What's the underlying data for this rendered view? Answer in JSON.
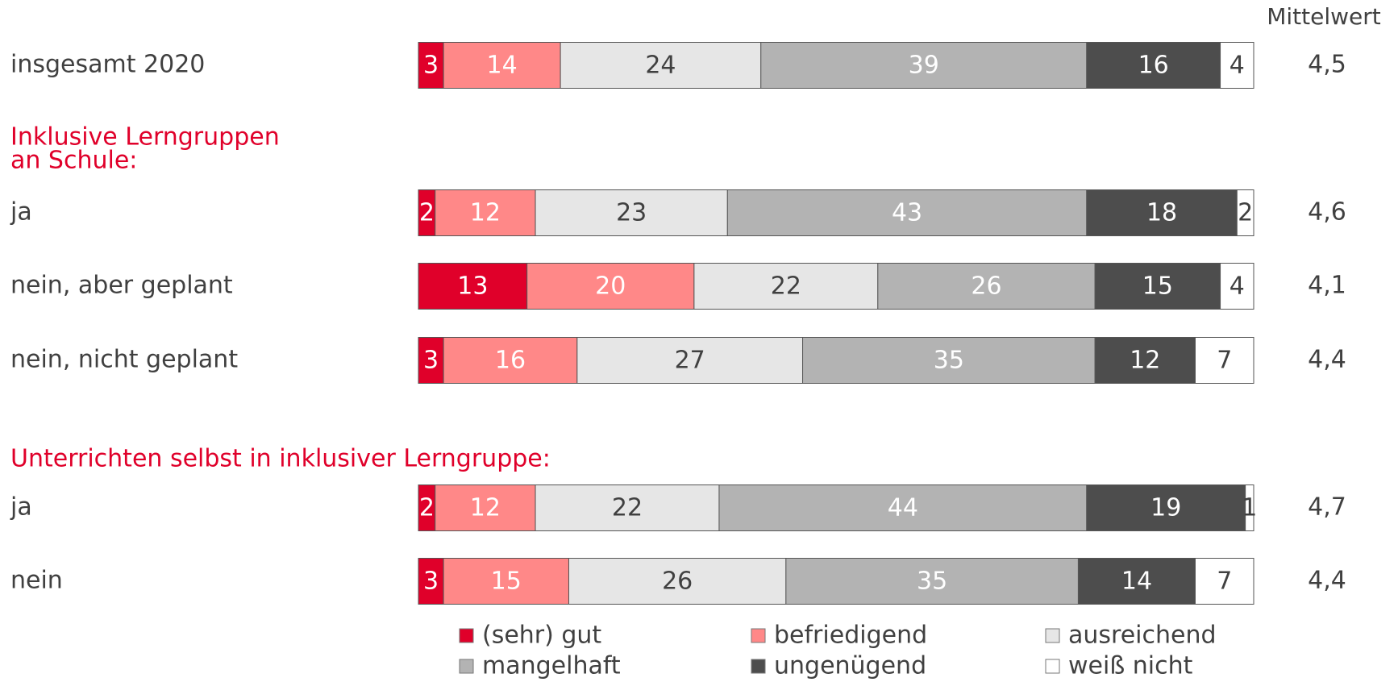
{
  "chart_data": {
    "type": "stacked_barh",
    "categories": [
      "insgesamt 2020",
      "ja",
      "nein, aber geplant",
      "nein, nicht geplant",
      "ja",
      "nein"
    ],
    "group_titles": [
      [
        "Inklusive Lerngruppen",
        "an Schule:"
      ],
      [
        "Unterrichten selbst in inklusiver Lerngruppe:"
      ]
    ],
    "xlim": [
      0,
      100
    ],
    "series": [
      {
        "name": "(sehr) gut",
        "color": "#e0002a",
        "label_color": "#ffffff",
        "values": [
          3,
          2,
          13,
          3,
          2,
          3
        ]
      },
      {
        "name": "befriedigend",
        "color": "#ff8888",
        "label_color": "#ffffff",
        "values": [
          14,
          12,
          20,
          16,
          12,
          15
        ]
      },
      {
        "name": "ausreichend",
        "color": "#e6e6e6",
        "label_color": "#404040",
        "values": [
          24,
          23,
          22,
          27,
          22,
          26
        ]
      },
      {
        "name": "mangelhaft",
        "color": "#b3b3b3",
        "label_color": "#ffffff",
        "values": [
          39,
          43,
          26,
          35,
          44,
          35
        ]
      },
      {
        "name": "ungenügend",
        "color": "#4d4d4d",
        "label_color": "#ffffff",
        "values": [
          16,
          18,
          15,
          12,
          19,
          14
        ]
      },
      {
        "name": "weiß nicht",
        "color": "#ffffff",
        "label_color": "#404040",
        "values": [
          4,
          2,
          4,
          7,
          1,
          7
        ]
      }
    ],
    "mean": {
      "title": "Mittelwert",
      "values": [
        4.5,
        4.6,
        4.1,
        4.4,
        4.7,
        4.4
      ],
      "value_labels": [
        "4,5",
        "4,6",
        "4,1",
        "4,4",
        "4,7",
        "4,4"
      ]
    }
  }
}
